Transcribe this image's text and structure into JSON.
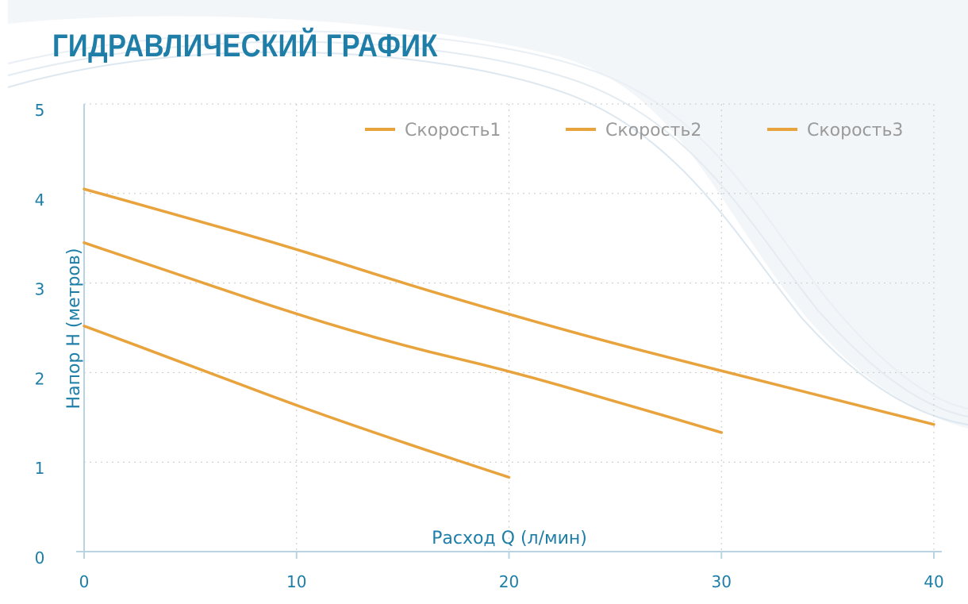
{
  "chart_data": {
    "type": "line",
    "title": "ГИДРАВЛИЧЕСКИЙ ГРАФИК",
    "xlabel": "Расход Q (л/мин)",
    "ylabel": "Напор H (метров)",
    "xlim": [
      0,
      40
    ],
    "ylim": [
      0,
      5
    ],
    "x_ticks": [
      "0",
      "10",
      "20",
      "30",
      "40"
    ],
    "y_ticks": [
      "0",
      "1",
      "2",
      "3",
      "4",
      "5"
    ],
    "grid": true,
    "legend_position": "top-right",
    "colors": {
      "line": "#e8a33c",
      "axis": "#b8d4e3",
      "text": "#1e7ea8",
      "grid": "#c8c8c8",
      "legend_text": "#9a9a9a"
    },
    "series": [
      {
        "name": "Скорость1",
        "points": [
          [
            0,
            4.05
          ],
          [
            5,
            3.72
          ],
          [
            10,
            3.38
          ],
          [
            15,
            3.0
          ],
          [
            20,
            2.65
          ],
          [
            25,
            2.32
          ],
          [
            30,
            2.02
          ],
          [
            35,
            1.72
          ],
          [
            40,
            1.42
          ]
        ]
      },
      {
        "name": "Скорость2",
        "points": [
          [
            0,
            3.45
          ],
          [
            5,
            3.05
          ],
          [
            10,
            2.65
          ],
          [
            15,
            2.3
          ],
          [
            20,
            2.02
          ],
          [
            25,
            1.68
          ],
          [
            30,
            1.33
          ]
        ]
      },
      {
        "name": "Скорость3",
        "points": [
          [
            0,
            2.52
          ],
          [
            5,
            2.08
          ],
          [
            10,
            1.63
          ],
          [
            15,
            1.22
          ],
          [
            20,
            0.83
          ]
        ]
      }
    ]
  }
}
